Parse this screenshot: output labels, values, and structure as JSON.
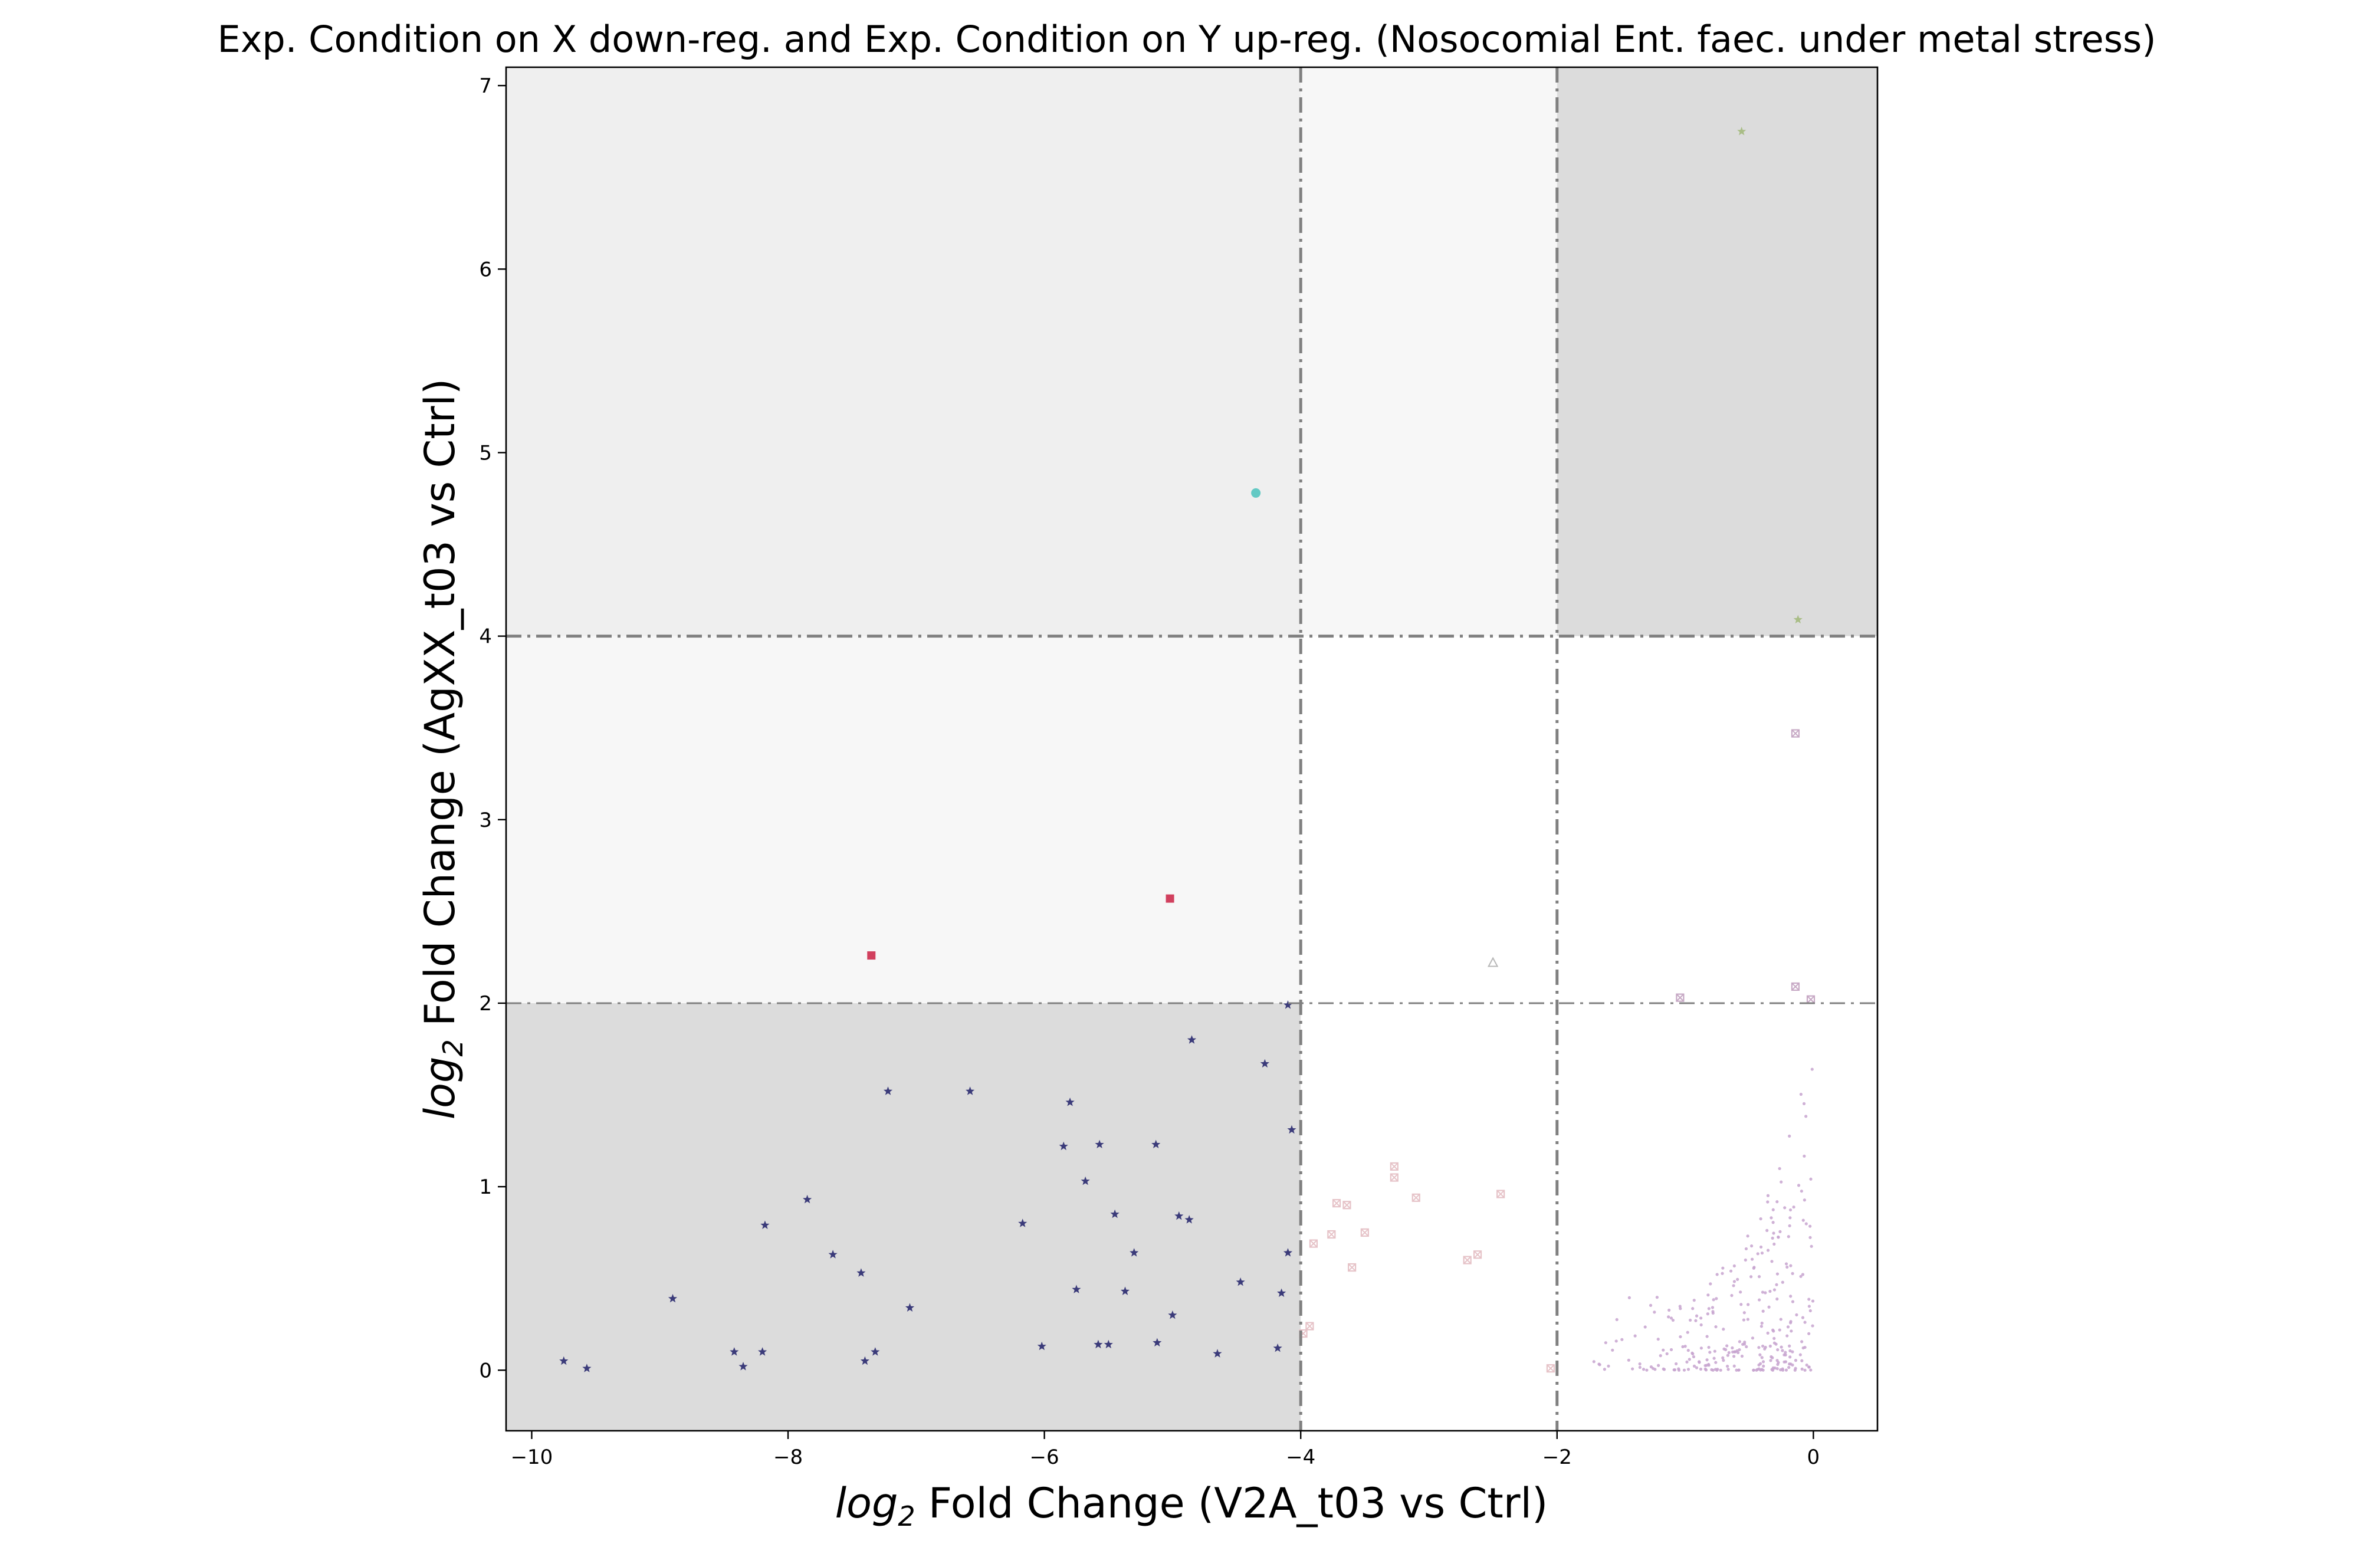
{
  "chart_data": {
    "type": "scatter",
    "title": "Exp. Condition on X down-reg. and Exp. Condition on Y up-reg. (Nosocomial Ent. faec. under metal stress)",
    "xlabel_prefix": "log",
    "xlabel_sub": "2",
    "xlabel_rest": " Fold Change (V2A_t03 vs Ctrl)",
    "ylabel_prefix": "log",
    "ylabel_sub": "2",
    "ylabel_rest": " Fold Change (AgXX_t03 vs Ctrl)",
    "xlim": [
      -10.2,
      0.5
    ],
    "ylim": [
      -0.33,
      7.1
    ],
    "xticks": [
      -10,
      -8,
      -6,
      -4,
      -2,
      0
    ],
    "xtick_labels": [
      "−10",
      "−8",
      "−6",
      "−4",
      "−2",
      "0"
    ],
    "yticks": [
      0,
      1,
      2,
      3,
      4,
      5,
      6,
      7
    ],
    "ytick_labels": [
      "0",
      "1",
      "2",
      "3",
      "4",
      "5",
      "6",
      "7"
    ],
    "grid": false,
    "threshold_lines": {
      "x": [
        -4,
        -2
      ],
      "y": [
        2,
        4
      ]
    },
    "regions": [
      {
        "x": [
          -10.2,
          -4
        ],
        "y": [
          -0.33,
          2
        ],
        "color": "#dcdcdc"
      },
      {
        "x": [
          -10.2,
          -4
        ],
        "y": [
          2,
          4
        ],
        "color": "#f7f7f7"
      },
      {
        "x": [
          -10.2,
          -4
        ],
        "y": [
          4,
          7.1
        ],
        "color": "#efefef"
      },
      {
        "x": [
          -4,
          -2
        ],
        "y": [
          4,
          7.1
        ],
        "color": "#f7f7f7"
      },
      {
        "x": [
          -2,
          0.5
        ],
        "y": [
          4,
          7.1
        ],
        "color": "#dcdcdc"
      }
    ],
    "series": [
      {
        "marker": "star",
        "color": "#3b3b7a",
        "points": [
          [
            -9.75,
            0.05
          ],
          [
            -9.57,
            0.01
          ],
          [
            -8.9,
            0.39
          ],
          [
            -8.42,
            0.1
          ],
          [
            -8.35,
            0.02
          ],
          [
            -8.2,
            0.1
          ],
          [
            -8.18,
            0.79
          ],
          [
            -7.85,
            0.93
          ],
          [
            -7.65,
            0.63
          ],
          [
            -7.43,
            0.53
          ],
          [
            -7.4,
            0.05
          ],
          [
            -7.32,
            0.1
          ],
          [
            -7.22,
            1.52
          ],
          [
            -7.05,
            0.34
          ],
          [
            -6.58,
            1.52
          ],
          [
            -6.17,
            0.8
          ],
          [
            -6.02,
            0.13
          ],
          [
            -5.85,
            1.22
          ],
          [
            -5.8,
            1.46
          ],
          [
            -5.75,
            0.44
          ],
          [
            -5.68,
            1.03
          ],
          [
            -5.58,
            0.14
          ],
          [
            -5.57,
            1.23
          ],
          [
            -5.5,
            0.14
          ],
          [
            -5.45,
            0.85
          ],
          [
            -5.37,
            0.43
          ],
          [
            -5.3,
            0.64
          ],
          [
            -5.13,
            1.23
          ],
          [
            -5.12,
            0.15
          ],
          [
            -5.0,
            0.3
          ],
          [
            -4.95,
            0.84
          ],
          [
            -4.87,
            0.82
          ],
          [
            -4.85,
            1.8
          ],
          [
            -4.65,
            0.09
          ],
          [
            -4.47,
            0.48
          ],
          [
            -4.28,
            1.67
          ],
          [
            -4.18,
            0.12
          ],
          [
            -4.15,
            0.42
          ],
          [
            -4.1,
            0.64
          ],
          [
            -4.1,
            1.99
          ],
          [
            -4.07,
            1.31
          ]
        ]
      },
      {
        "marker": "square",
        "color": "#d1405e",
        "points": [
          [
            -7.35,
            2.26
          ],
          [
            -5.02,
            2.57
          ]
        ]
      },
      {
        "marker": "circle",
        "color": "#63c9c4",
        "points": [
          [
            -4.35,
            4.78
          ]
        ]
      },
      {
        "marker": "star",
        "color": "#a9bd86",
        "points": [
          [
            -0.56,
            6.75
          ],
          [
            -0.12,
            4.09
          ]
        ]
      },
      {
        "marker": "triangle",
        "color": "#b8b8b8",
        "points": [
          [
            -2.5,
            2.22
          ]
        ]
      },
      {
        "marker": "xsquare",
        "color": "#c7a9c5",
        "points": [
          [
            -0.14,
            3.47
          ],
          [
            -1.04,
            2.03
          ],
          [
            -0.14,
            2.09
          ],
          [
            -0.02,
            2.02
          ]
        ]
      },
      {
        "marker": "xsquare",
        "color": "#e6c3c8",
        "points": [
          [
            -3.98,
            0.2
          ],
          [
            -3.93,
            0.24
          ],
          [
            -3.9,
            0.69
          ],
          [
            -3.76,
            0.74
          ],
          [
            -3.72,
            0.91
          ],
          [
            -3.64,
            0.9
          ],
          [
            -3.6,
            0.56
          ],
          [
            -3.5,
            0.75
          ],
          [
            -3.27,
            1.05
          ],
          [
            -3.27,
            1.11
          ],
          [
            -3.1,
            0.94
          ],
          [
            -2.7,
            0.6
          ],
          [
            -2.62,
            0.63
          ],
          [
            -2.44,
            0.96
          ],
          [
            -2.05,
            0.01
          ]
        ]
      }
    ]
  }
}
